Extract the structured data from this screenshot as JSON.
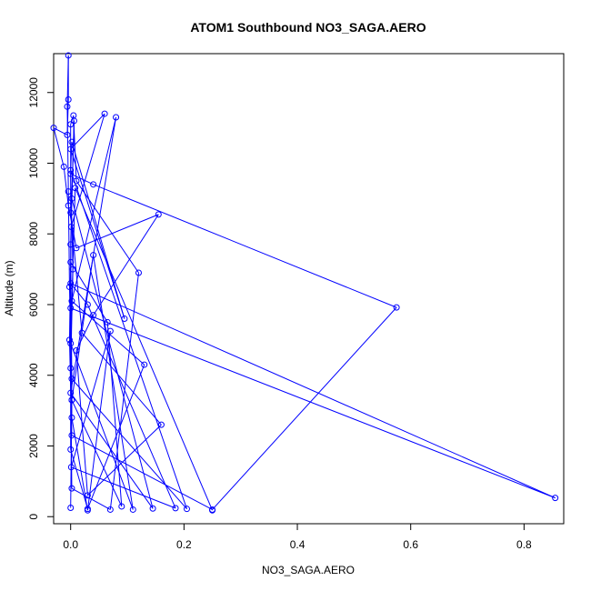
{
  "chart_data": {
    "type": "line",
    "title": "ATOM1 Southbound NO3_SAGA.AERO",
    "xlabel": "NO3_SAGA.AERO",
    "ylabel": "Altitude (m)",
    "xlim": [
      -0.03,
      0.87
    ],
    "ylim": [
      -200,
      13100
    ],
    "x_ticks": [
      0.0,
      0.2,
      0.4,
      0.6,
      0.8
    ],
    "x_tick_labels": [
      "0.0",
      "0.2",
      "0.4",
      "0.6",
      "0.8"
    ],
    "y_ticks": [
      0,
      2000,
      4000,
      6000,
      8000,
      10000,
      12000
    ],
    "y_tick_labels": [
      "0",
      "2000",
      "4000",
      "6000",
      "8000",
      "10000",
      "12000"
    ],
    "series_color": "#0000ff",
    "points": [
      {
        "x": 0.0,
        "y": 250
      },
      {
        "x": 0.002,
        "y": 3300
      },
      {
        "x": -0.002,
        "y": 6500
      },
      {
        "x": -0.004,
        "y": 9200
      },
      {
        "x": -0.006,
        "y": 11600
      },
      {
        "x": -0.004,
        "y": 13050
      },
      {
        "x": -0.004,
        "y": 11800
      },
      {
        "x": -0.006,
        "y": 10800
      },
      {
        "x": -0.03,
        "y": 11000
      },
      {
        "x": -0.012,
        "y": 9900
      },
      {
        "x": -0.004,
        "y": 8800
      },
      {
        "x": 0.01,
        "y": 7600
      },
      {
        "x": 0.155,
        "y": 8550
      },
      {
        "x": 0.04,
        "y": 5700
      },
      {
        "x": 0.01,
        "y": 4700
      },
      {
        "x": 0.03,
        "y": 600
      },
      {
        "x": 0.16,
        "y": 2600
      },
      {
        "x": 0.02,
        "y": 5200
      },
      {
        "x": 0.0,
        "y": 8600
      },
      {
        "x": 0.0,
        "y": 11100
      },
      {
        "x": 0.005,
        "y": 11350
      },
      {
        "x": 0.01,
        "y": 9500
      },
      {
        "x": 0.12,
        "y": 6900
      },
      {
        "x": 0.07,
        "y": 200
      },
      {
        "x": 0.002,
        "y": 800
      },
      {
        "x": 0.0,
        "y": 4200
      },
      {
        "x": 0.004,
        "y": 7000
      },
      {
        "x": 0.0,
        "y": 9700
      },
      {
        "x": 0.04,
        "y": 9400
      },
      {
        "x": 0.575,
        "y": 5920
      },
      {
        "x": 0.25,
        "y": 200
      },
      {
        "x": 0.002,
        "y": 2300
      },
      {
        "x": -0.002,
        "y": 5000
      },
      {
        "x": 0.001,
        "y": 8200
      },
      {
        "x": 0.06,
        "y": 11400
      },
      {
        "x": 0.0,
        "y": 10400
      },
      {
        "x": 0.095,
        "y": 5600
      },
      {
        "x": 0.002,
        "y": 10600
      },
      {
        "x": 0.0,
        "y": 9800
      },
      {
        "x": 0.205,
        "y": 220
      },
      {
        "x": 0.002,
        "y": 3900
      },
      {
        "x": 0.0,
        "y": 7700
      },
      {
        "x": 0.006,
        "y": 11200
      },
      {
        "x": 0.002,
        "y": 9000
      },
      {
        "x": 0.145,
        "y": 230
      },
      {
        "x": 0.0,
        "y": 3500
      },
      {
        "x": 0.08,
        "y": 11300
      },
      {
        "x": 0.002,
        "y": 6100
      },
      {
        "x": 0.13,
        "y": 4300
      },
      {
        "x": 0.03,
        "y": 220
      },
      {
        "x": 0.0,
        "y": 1900
      },
      {
        "x": 0.0,
        "y": 5900
      },
      {
        "x": 0.855,
        "y": 530
      },
      {
        "x": 0.0,
        "y": 6600
      },
      {
        "x": 0.03,
        "y": 6000
      },
      {
        "x": 0.185,
        "y": 240
      },
      {
        "x": 0.001,
        "y": 1400
      },
      {
        "x": 0.07,
        "y": 5250
      },
      {
        "x": 0.03,
        "y": 180
      },
      {
        "x": 0.002,
        "y": 2800
      },
      {
        "x": 0.0,
        "y": 7200
      },
      {
        "x": 0.065,
        "y": 5500
      },
      {
        "x": 0.09,
        "y": 290
      },
      {
        "x": 0.002,
        "y": 3300
      },
      {
        "x": 0.04,
        "y": 7400
      },
      {
        "x": 0.11,
        "y": 200
      },
      {
        "x": 0.0,
        "y": 4900
      },
      {
        "x": 0.008,
        "y": 9300
      },
      {
        "x": 0.25,
        "y": 180
      }
    ]
  }
}
